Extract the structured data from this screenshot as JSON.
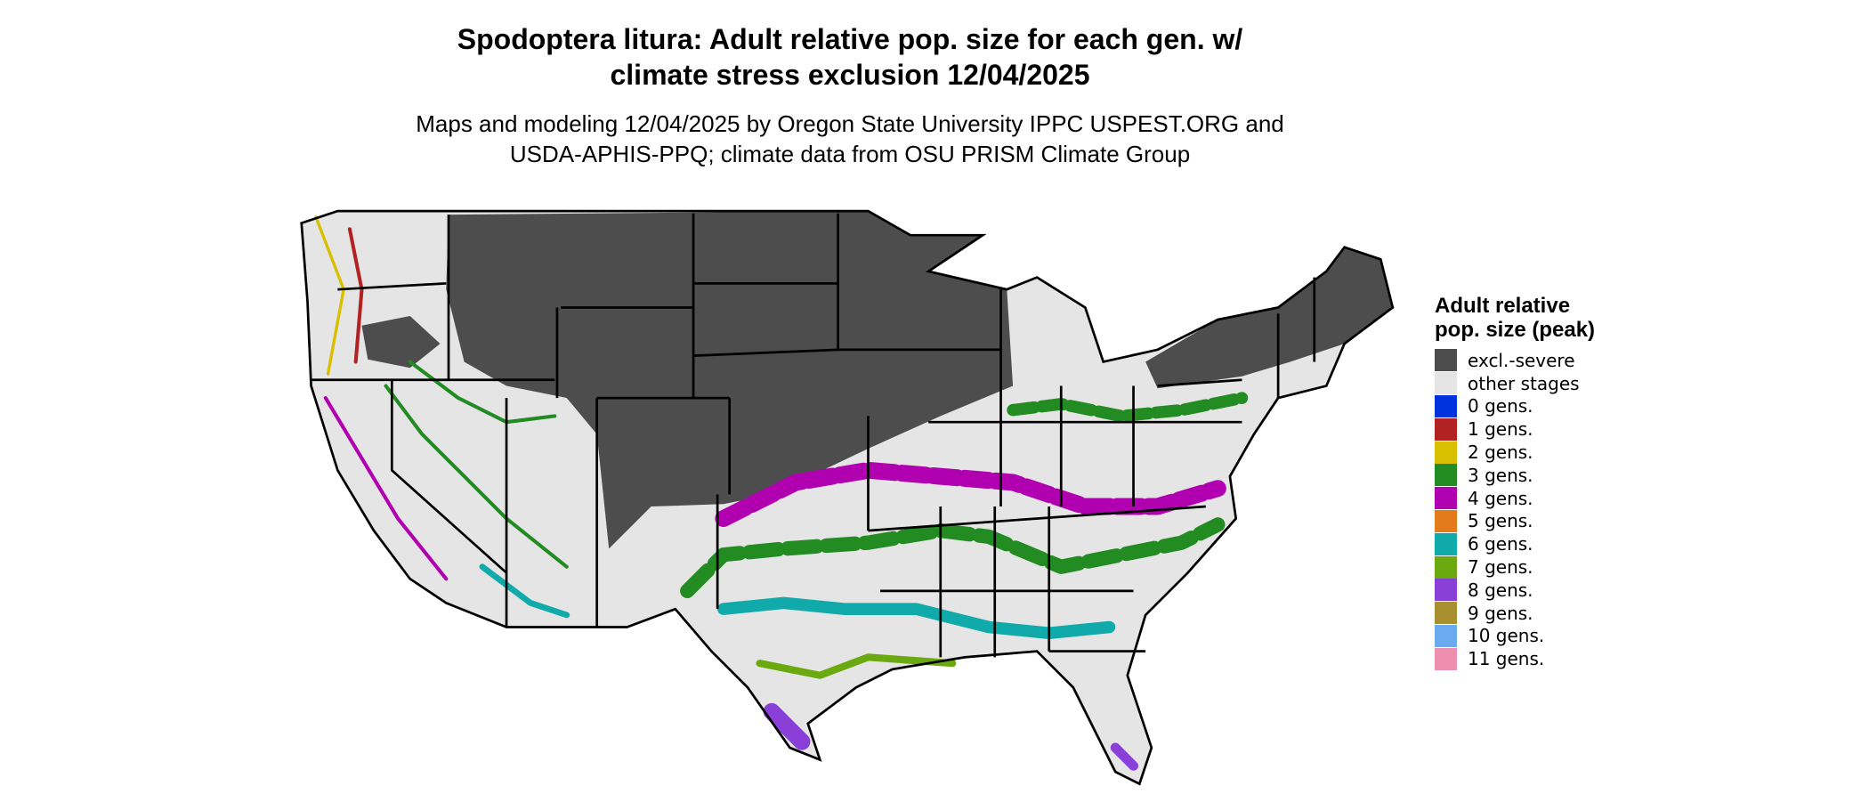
{
  "map": {
    "title": "Spodoptera litura: Adult relative pop. size for each gen. w/ climate stress exclusion 12/04/2025",
    "subtitle": "Maps and modeling 12/04/2025 by Oregon State University IPPC USPEST.ORG and USDA-APHIS-PPQ; climate data from OSU PRISM Climate Group",
    "legend": {
      "title": "Adult relative pop. size (peak)",
      "items": [
        {
          "label": "excl.-severe",
          "color": "#4d4d4d"
        },
        {
          "label": "other stages",
          "color": "#e5e5e5"
        },
        {
          "label": "0 gens.",
          "color": "#0033dd"
        },
        {
          "label": "1 gens.",
          "color": "#b22222"
        },
        {
          "label": "2 gens.",
          "color": "#d8c000"
        },
        {
          "label": "3 gens.",
          "color": "#228b22"
        },
        {
          "label": "4 gens.",
          "color": "#b000b0"
        },
        {
          "label": "5 gens.",
          "color": "#e37a1b"
        },
        {
          "label": "6 gens.",
          "color": "#10aaaa"
        },
        {
          "label": "7 gens.",
          "color": "#6aaa10"
        },
        {
          "label": "8 gens.",
          "color": "#8a3fd8"
        },
        {
          "label": "9 gens.",
          "color": "#a89030"
        },
        {
          "label": "10 gens.",
          "color": "#6aaaee"
        },
        {
          "label": "11 gens.",
          "color": "#ef8faf"
        }
      ]
    }
  }
}
